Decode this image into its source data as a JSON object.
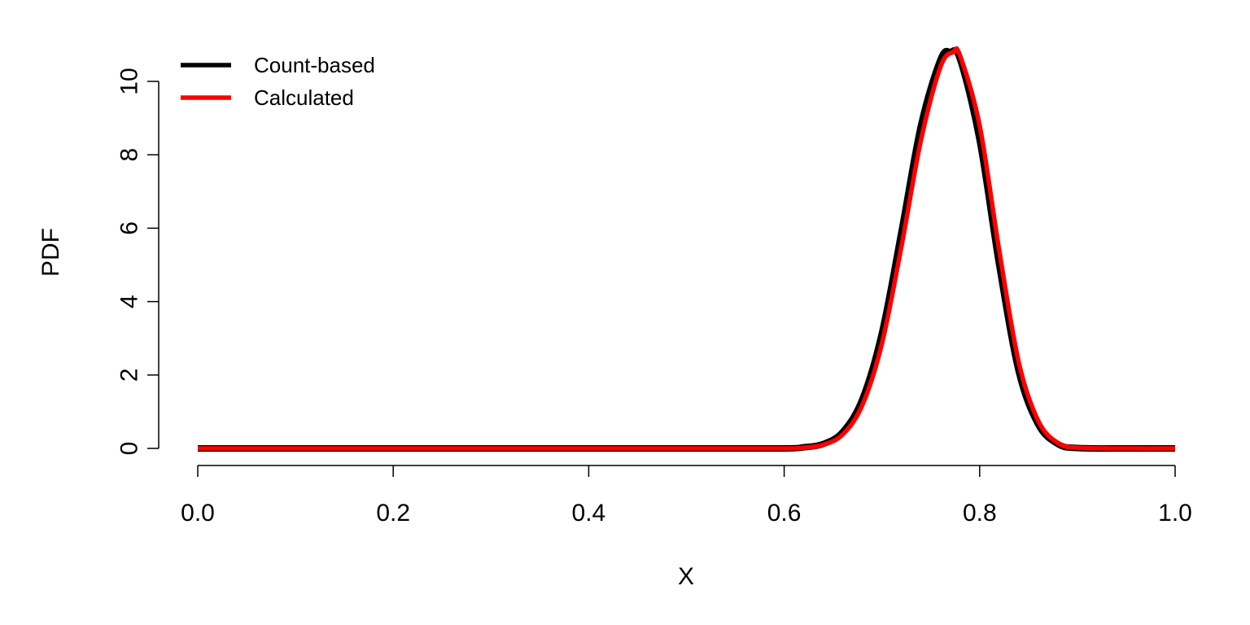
{
  "chart_data": {
    "type": "line",
    "title": "",
    "xlabel": "X",
    "ylabel": "PDF",
    "xlim": [
      0.0,
      1.0
    ],
    "ylim": [
      0,
      10.8
    ],
    "x_ticks": [
      "0.0",
      "0.2",
      "0.4",
      "0.6",
      "0.8",
      "1.0"
    ],
    "y_ticks": [
      "0",
      "2",
      "4",
      "6",
      "8",
      "10"
    ],
    "grid": false,
    "legend_position": "top-left",
    "series": [
      {
        "name": "Count-based",
        "color": "#000000",
        "x": [
          0.0,
          0.1,
          0.2,
          0.3,
          0.4,
          0.5,
          0.6,
          0.62,
          0.64,
          0.66,
          0.68,
          0.7,
          0.72,
          0.74,
          0.76,
          0.77,
          0.78,
          0.8,
          0.82,
          0.84,
          0.86,
          0.88,
          0.9,
          0.95,
          1.0
        ],
        "y": [
          0,
          0,
          0,
          0,
          0,
          0,
          0.0,
          0.03,
          0.12,
          0.45,
          1.34,
          3.14,
          5.9,
          8.8,
          10.6,
          10.8,
          10.6,
          8.4,
          5.0,
          2.1,
          0.65,
          0.12,
          0.01,
          0,
          0
        ]
      },
      {
        "name": "Calculated",
        "color": "#ff0000",
        "x": [
          0.0,
          0.1,
          0.2,
          0.3,
          0.4,
          0.5,
          0.6,
          0.62,
          0.64,
          0.66,
          0.68,
          0.7,
          0.72,
          0.74,
          0.76,
          0.773,
          0.78,
          0.8,
          0.82,
          0.84,
          0.86,
          0.88,
          0.9,
          0.95,
          1.0
        ],
        "y": [
          0,
          0,
          0,
          0,
          0,
          0,
          0.0,
          0.02,
          0.1,
          0.38,
          1.18,
          2.85,
          5.5,
          8.4,
          10.4,
          10.8,
          10.7,
          8.8,
          5.4,
          2.35,
          0.75,
          0.15,
          0.02,
          0,
          0
        ]
      }
    ]
  }
}
